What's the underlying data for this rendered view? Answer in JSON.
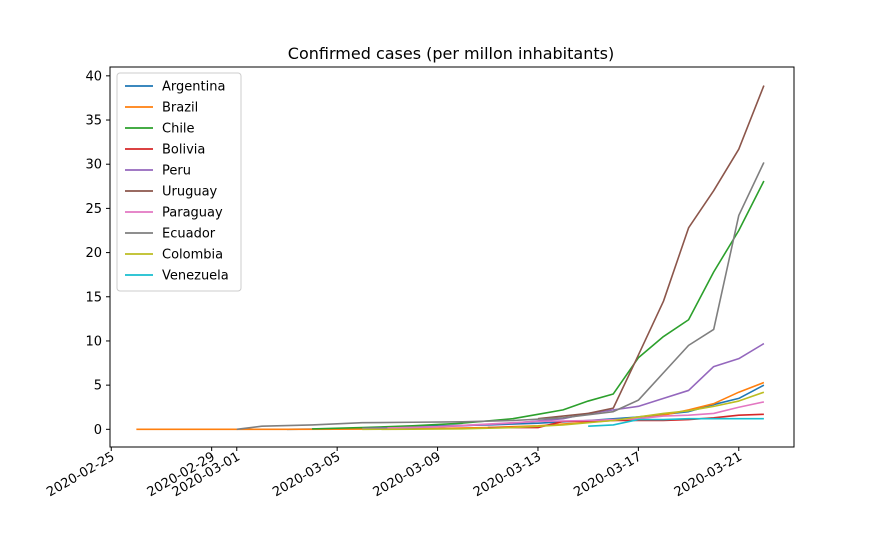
{
  "chart_data": {
    "type": "line",
    "title": "Confirmed cases (per millon inhabitants)",
    "xlabel": "",
    "ylabel": "",
    "ylim": [
      -2,
      41
    ],
    "xlim": [
      "2020-02-25",
      "2020-03-23"
    ],
    "y_ticks": [
      0,
      5,
      10,
      15,
      20,
      25,
      30,
      35,
      40
    ],
    "x_ticks": [
      "2020-02-25",
      "2020-02-29",
      "2020-03-01",
      "2020-03-05",
      "2020-03-09",
      "2020-03-13",
      "2020-03-17",
      "2020-03-21"
    ],
    "legend_position": "top-left",
    "series": [
      {
        "name": "Argentina",
        "color": "#1f77b4",
        "x": [
          "2020-03-03",
          "2020-03-05",
          "2020-03-07",
          "2020-03-09",
          "2020-03-11",
          "2020-03-13",
          "2020-03-15",
          "2020-03-17",
          "2020-03-19",
          "2020-03-20",
          "2020-03-21",
          "2020-03-22"
        ],
        "y": [
          0.0,
          0.05,
          0.2,
          0.4,
          0.5,
          0.7,
          1.0,
          1.4,
          2.0,
          2.8,
          3.5,
          5.0
        ]
      },
      {
        "name": "Brazil",
        "color": "#ff7f0e",
        "x": [
          "2020-02-26",
          "2020-02-28",
          "2020-03-01",
          "2020-03-03",
          "2020-03-05",
          "2020-03-07",
          "2020-03-09",
          "2020-03-11",
          "2020-03-13",
          "2020-03-15",
          "2020-03-17",
          "2020-03-18",
          "2020-03-19",
          "2020-03-20",
          "2020-03-21",
          "2020-03-22"
        ],
        "y": [
          0.0,
          0.0,
          0.0,
          0.0,
          0.02,
          0.05,
          0.1,
          0.2,
          0.4,
          0.8,
          1.2,
          1.6,
          2.2,
          2.9,
          4.2,
          5.3
        ]
      },
      {
        "name": "Chile",
        "color": "#2ca02c",
        "x": [
          "2020-03-04",
          "2020-03-06",
          "2020-03-08",
          "2020-03-10",
          "2020-03-12",
          "2020-03-13",
          "2020-03-14",
          "2020-03-15",
          "2020-03-16",
          "2020-03-17",
          "2020-03-18",
          "2020-03-19",
          "2020-03-20",
          "2020-03-21",
          "2020-03-22"
        ],
        "y": [
          0.05,
          0.2,
          0.4,
          0.7,
          1.2,
          1.7,
          2.2,
          3.2,
          4.0,
          8.1,
          10.5,
          12.4,
          17.8,
          22.5,
          28.1
        ]
      },
      {
        "name": "Bolivia",
        "color": "#d62728",
        "x": [
          "2020-03-11",
          "2020-03-13",
          "2020-03-14",
          "2020-03-15",
          "2020-03-16",
          "2020-03-17",
          "2020-03-18",
          "2020-03-19",
          "2020-03-20",
          "2020-03-21",
          "2020-03-22"
        ],
        "y": [
          0.2,
          0.2,
          0.9,
          0.9,
          1.0,
          1.0,
          1.0,
          1.1,
          1.3,
          1.6,
          1.7
        ]
      },
      {
        "name": "Peru",
        "color": "#9467bd",
        "x": [
          "2020-03-06",
          "2020-03-08",
          "2020-03-10",
          "2020-03-12",
          "2020-03-14",
          "2020-03-15",
          "2020-03-16",
          "2020-03-17",
          "2020-03-18",
          "2020-03-19",
          "2020-03-20",
          "2020-03-21",
          "2020-03-22"
        ],
        "y": [
          0.1,
          0.2,
          0.4,
          0.7,
          1.2,
          1.8,
          2.2,
          2.6,
          3.5,
          4.4,
          7.1,
          8.0,
          9.7
        ]
      },
      {
        "name": "Uruguay",
        "color": "#8c564b",
        "x": [
          "2020-03-13",
          "2020-03-14",
          "2020-03-15",
          "2020-03-16",
          "2020-03-17",
          "2020-03-18",
          "2020-03-19",
          "2020-03-20",
          "2020-03-21",
          "2020-03-22"
        ],
        "y": [
          1.2,
          1.5,
          1.8,
          2.4,
          8.4,
          14.5,
          22.8,
          27.0,
          31.7,
          38.9
        ]
      },
      {
        "name": "Paraguay",
        "color": "#e377c2",
        "x": [
          "2020-03-07",
          "2020-03-09",
          "2020-03-11",
          "2020-03-13",
          "2020-03-15",
          "2020-03-17",
          "2020-03-18",
          "2020-03-19",
          "2020-03-20",
          "2020-03-21",
          "2020-03-22"
        ],
        "y": [
          0.15,
          0.3,
          0.6,
          0.9,
          1.0,
          1.2,
          1.5,
          1.6,
          1.8,
          2.5,
          3.1
        ]
      },
      {
        "name": "Ecuador",
        "color": "#7f7f7f",
        "x": [
          "2020-03-01",
          "2020-03-02",
          "2020-03-04",
          "2020-03-06",
          "2020-03-08",
          "2020-03-10",
          "2020-03-12",
          "2020-03-14",
          "2020-03-16",
          "2020-03-17",
          "2020-03-18",
          "2020-03-19",
          "2020-03-20",
          "2020-03-21",
          "2020-03-22"
        ],
        "y": [
          0.0,
          0.35,
          0.5,
          0.75,
          0.8,
          0.85,
          1.0,
          1.3,
          2.0,
          3.3,
          6.4,
          9.5,
          11.3,
          24.2,
          30.2
        ]
      },
      {
        "name": "Colombia",
        "color": "#bcbd22",
        "x": [
          "2020-03-06",
          "2020-03-08",
          "2020-03-10",
          "2020-03-12",
          "2020-03-14",
          "2020-03-16",
          "2020-03-17",
          "2020-03-18",
          "2020-03-19",
          "2020-03-20",
          "2020-03-21",
          "2020-03-22"
        ],
        "y": [
          0.0,
          0.02,
          0.05,
          0.2,
          0.5,
          1.0,
          1.4,
          1.8,
          2.1,
          2.6,
          3.2,
          4.2
        ]
      },
      {
        "name": "Venezuela",
        "color": "#17becf",
        "x": [
          "2020-03-15",
          "2020-03-16",
          "2020-03-17",
          "2020-03-18",
          "2020-03-19",
          "2020-03-20",
          "2020-03-21",
          "2020-03-22"
        ],
        "y": [
          0.35,
          0.5,
          1.1,
          1.1,
          1.2,
          1.2,
          1.2,
          1.2
        ]
      }
    ]
  }
}
